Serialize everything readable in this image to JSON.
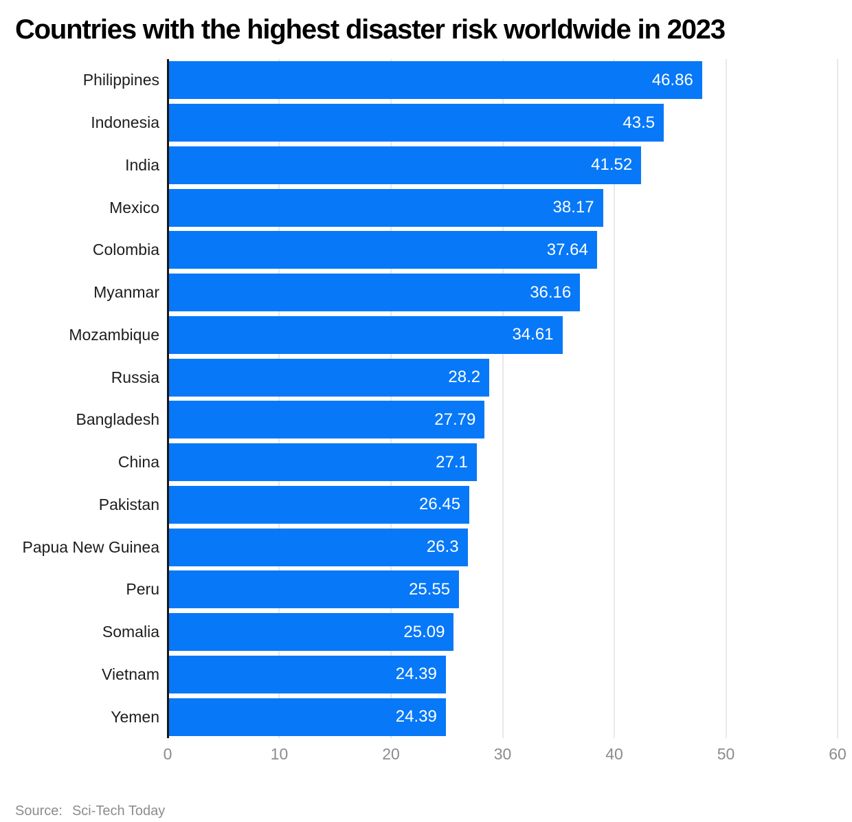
{
  "title": "Countries with the highest disaster risk worldwide in 2023",
  "source": {
    "prefix": "Source:",
    "name": "Sci-Tech Today"
  },
  "chart_data": {
    "type": "bar",
    "orientation": "horizontal",
    "title": "Countries with the highest disaster risk worldwide in 2023",
    "categories": [
      "Philippines",
      "Indonesia",
      "India",
      "Mexico",
      "Colombia",
      "Myanmar",
      "Mozambique",
      "Russia",
      "Bangladesh",
      "China",
      "Pakistan",
      "Papua New Guinea",
      "Peru",
      "Somalia",
      "Vietnam",
      "Yemen"
    ],
    "values": [
      46.86,
      43.5,
      41.52,
      38.17,
      37.64,
      36.16,
      34.61,
      28.2,
      27.79,
      27.1,
      26.45,
      26.3,
      25.55,
      25.09,
      24.39,
      24.39
    ],
    "value_labels": [
      "46.86",
      "43.5",
      "41.52",
      "38.17",
      "37.64",
      "36.16",
      "34.61",
      "28.2",
      "27.79",
      "27.1",
      "26.45",
      "26.3",
      "25.55",
      "25.09",
      "24.39",
      "24.39"
    ],
    "xlabel": "",
    "ylabel": "",
    "xlim": [
      0,
      60
    ],
    "xticks": [
      0,
      10,
      20,
      30,
      40,
      50,
      60
    ],
    "grid": true,
    "bar_color": "#0778f8",
    "value_label_color": "#ffffff",
    "legend": null
  }
}
